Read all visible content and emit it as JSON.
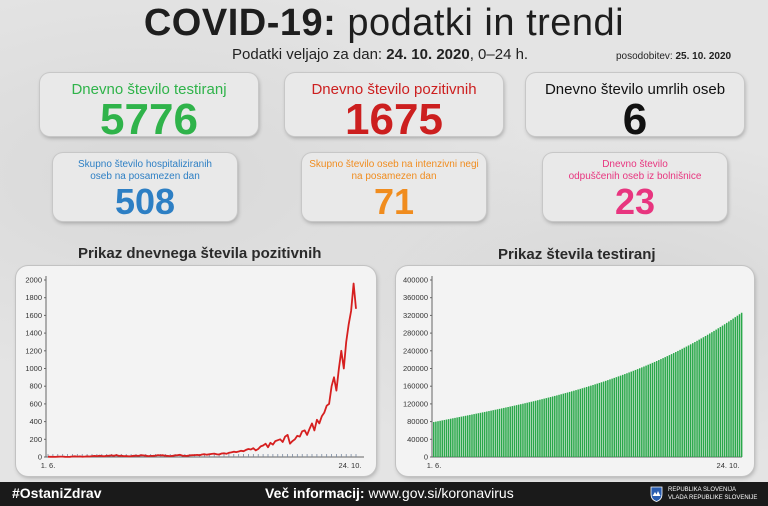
{
  "header": {
    "title_bold": "COVID-19:",
    "title_rest": "podatki in trendi",
    "subtitle_prefix": "Podatki veljajo za dan:",
    "subtitle_date": "24. 10. 2020",
    "subtitle_suffix": ", 0–24 h.",
    "updated_label": "posodobitev:",
    "updated_date": "25. 10. 2020"
  },
  "cards": {
    "tested": {
      "label": "Dnevno število testiranj",
      "value": "5776",
      "color": "#2fb34a"
    },
    "positive": {
      "label": "Dnevno število pozitivnih",
      "value": "1675",
      "color": "#cc1f1f"
    },
    "deaths": {
      "label": "Dnevno število umrlih oseb",
      "value": "6",
      "color": "#111111"
    },
    "hospitalized": {
      "label_line1": "Skupno število hospitaliziranih",
      "label_line2": "oseb na posamezen dan",
      "value": "508",
      "color": "#2d7fc4"
    },
    "icu": {
      "label_line1": "Skupno število oseb na intenzivni negi",
      "label_line2": "na posamezen dan",
      "value": "71",
      "color": "#f08c1e"
    },
    "discharged": {
      "label_line1": "Dnevno število",
      "label_line2": "odpuščenih oseb iz bolnišnice",
      "value": "23",
      "color": "#e8357f"
    }
  },
  "chart_data": [
    {
      "type": "line",
      "title": "Prikaz dnevnega števila pozitivnih",
      "xlabel": "",
      "ylabel": "",
      "x_tick_labels": [
        "1. 6.",
        "24. 10."
      ],
      "y_ticks": [
        "0",
        "200",
        "400",
        "600",
        "800",
        "1000",
        "1200",
        "1400",
        "1600",
        "1800",
        "2000"
      ],
      "ylim": [
        0,
        2000
      ],
      "series": [
        {
          "color": "#d61f1f",
          "values": [
            3,
            2,
            2,
            1,
            3,
            5,
            4,
            2,
            1,
            2,
            6,
            8,
            5,
            7,
            3,
            4,
            8,
            6,
            10,
            12,
            9,
            15,
            11,
            8,
            13,
            15,
            18,
            14,
            22,
            12,
            15,
            10,
            11,
            8,
            9,
            14,
            16,
            12,
            20,
            18,
            15,
            10,
            12,
            14,
            16,
            22,
            18,
            20,
            15,
            12,
            10,
            14,
            18,
            20,
            25,
            16,
            12,
            14,
            18,
            20,
            22,
            24,
            20,
            28,
            32,
            26,
            30,
            35,
            38,
            30,
            28,
            40,
            42,
            36,
            48,
            52,
            60,
            55,
            62,
            70,
            65,
            80,
            90,
            85,
            100,
            75,
            90,
            120,
            130,
            150,
            110,
            160,
            140,
            180,
            190,
            200,
            170,
            230,
            250,
            150,
            180,
            200,
            240,
            230,
            290,
            300,
            250,
            320,
            380,
            300,
            420,
            380,
            460,
            500,
            580,
            600,
            800,
            900,
            750,
            1000,
            1200,
            1000,
            1300,
            1500,
            1650,
            1960,
            1675
          ]
        }
      ]
    },
    {
      "type": "bar",
      "title": "Prikaz števila testiranj",
      "xlabel": "",
      "ylabel": "",
      "x_tick_labels": [
        "1. 6.",
        "24. 10."
      ],
      "y_ticks": [
        "0",
        "40000",
        "80000",
        "120000",
        "160000",
        "200000",
        "240000",
        "280000",
        "320000",
        "360000",
        "400000"
      ],
      "ylim": [
        0,
        400000
      ],
      "series": [
        {
          "color": "#2aa84a",
          "start": 79000,
          "end": 326000,
          "count": 146
        }
      ]
    }
  ],
  "footer": {
    "hashtag": "#OstaniZdrav",
    "more_label": "Več informacij:",
    "more_url": "www.gov.si/koronavirus",
    "gov_line1": "REPUBLIKA SLOVENIJA",
    "gov_line2": "VLADA REPUBLIKE SLOVENIJE"
  }
}
